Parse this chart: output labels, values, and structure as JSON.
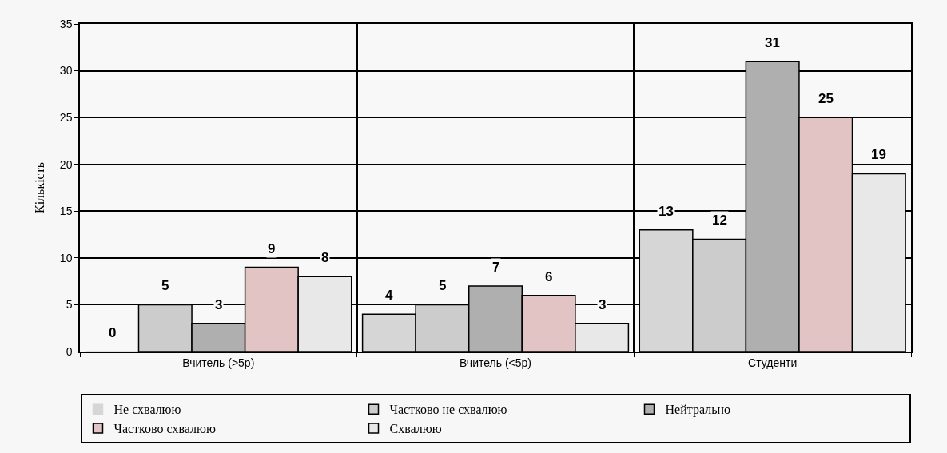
{
  "chart_data": {
    "type": "bar",
    "ylabel": "Кількість",
    "categories": [
      "Вчитель (>5р)",
      "Вчитель (<5р)",
      "Студенти"
    ],
    "series": [
      {
        "name": "Не схвалюю",
        "color": "#d6d6d6",
        "values": [
          0,
          4,
          13
        ]
      },
      {
        "name": "Частково не схвалюю",
        "color": "#cccccc",
        "values": [
          5,
          5,
          12
        ]
      },
      {
        "name": "Нейтрально",
        "color": "#afafaf",
        "values": [
          3,
          7,
          31
        ]
      },
      {
        "name": "Частково схвалюю",
        "color": "#e2c4c4",
        "values": [
          9,
          6,
          25
        ]
      },
      {
        "name": "Схвалюю",
        "color": "#e8e8e8",
        "values": [
          8,
          3,
          19
        ]
      }
    ],
    "ylim": [
      0,
      35
    ],
    "yticks": [
      0,
      5,
      10,
      15,
      20,
      25,
      30,
      35
    ],
    "grid": true,
    "legend": "bottom",
    "data_labels": true
  }
}
